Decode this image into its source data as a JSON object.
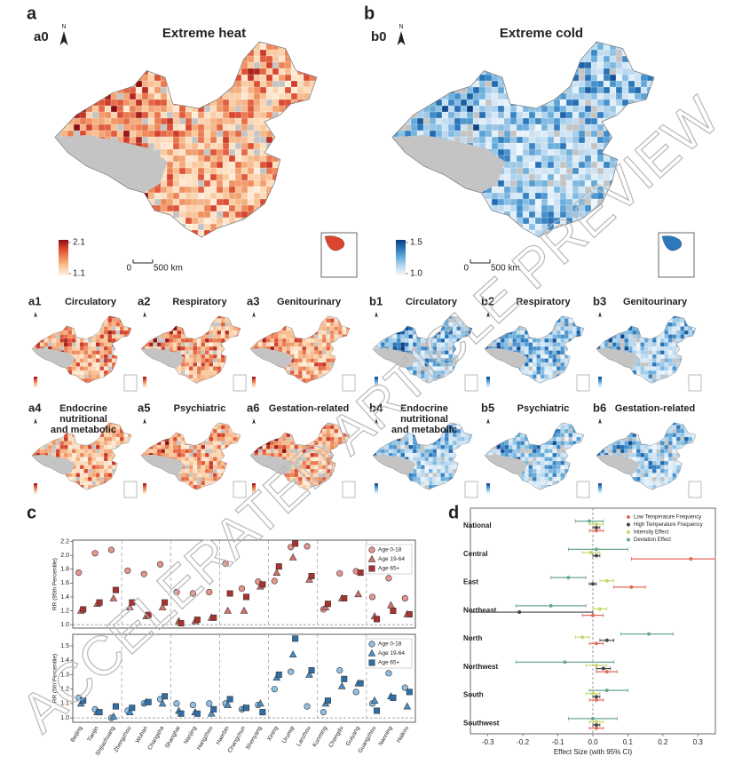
{
  "watermark": "ACCELERATED ARTICLE PREVIEW",
  "maps": {
    "heat": {
      "panel": "a",
      "label": "a0",
      "title": "Extreme heat",
      "north": "N",
      "colorbar": [
        2.1,
        1.1
      ],
      "scale_bar": [
        0,
        {
          "value": 500,
          "label": "500 km"
        }
      ],
      "colors": [
        "#fff1e0",
        "#f9c79a",
        "#ef8a5a",
        "#d9452f",
        "#8a0d12"
      ],
      "small": [
        {
          "label": "a1",
          "title": "Circulatory"
        },
        {
          "label": "a2",
          "title": "Respiratory"
        },
        {
          "label": "a3",
          "title": "Genitourinary"
        },
        {
          "label": "a4",
          "title": [
            "Endocrine",
            "nutritional",
            "and metabolic"
          ]
        },
        {
          "label": "a5",
          "title": "Psychiatric"
        },
        {
          "label": "a6",
          "title": "Gestation-related"
        }
      ]
    },
    "cold": {
      "panel": "b",
      "label": "b0",
      "title": "Extreme cold",
      "north": "N",
      "colorbar": [
        1.5,
        {
          "value": 1,
          "label": "1.0"
        }
      ],
      "scale_bar": [
        0,
        {
          "value": 500,
          "label": "500 km"
        }
      ],
      "colors": [
        "#f2f8fd",
        "#bcd9ef",
        "#6aaedb",
        "#2b78bd",
        "#0b3d7e"
      ],
      "small": [
        {
          "label": "b1",
          "title": "Circulatory"
        },
        {
          "label": "b2",
          "title": "Respiratory"
        },
        {
          "label": "b3",
          "title": "Genitourinary"
        },
        {
          "label": "b4",
          "title": [
            "Endocrine",
            "nutritional",
            "and metabolic"
          ]
        },
        {
          "label": "b5",
          "title": "Psychiatric"
        },
        {
          "label": "b6",
          "title": "Gestation-related"
        }
      ]
    }
  },
  "chart_data": [
    {
      "type": "dot",
      "panel": "c",
      "categories": [
        "Beijing",
        "Tianjin",
        "Shijiazhuang",
        "Zhengzhou",
        "Wuhan",
        "Changsha",
        "Shanghai",
        "Nanjing",
        "Hangzhou",
        "Haerbin",
        "Changchun",
        "Shenyang",
        "Xining",
        "Urumqi",
        "Lanzhou",
        "Kunming",
        "Chengdu",
        "Guiyang",
        "Guangzhou",
        "Nanning",
        "Haikou"
      ],
      "panels": [
        {
          "ylabel": "RR (95th Percentile)",
          "ylim": [
            0.95,
            2.22
          ],
          "yticks": [
            {
              "value": 1,
              "label": "1.0"
            },
            1.2,
            1.4,
            1.6,
            1.8,
            {
              "value": 2,
              "label": "2.0"
            },
            2.2
          ],
          "ref_line": 1,
          "legend": "top-right",
          "series": [
            {
              "name": "Age 0-18",
              "marker": "circle",
              "color": "#e8958e",
              "values": [
                1.75,
                2.03,
                2.08,
                1.78,
                1.73,
                1.87,
                1.47,
                1.45,
                1.47,
                1.88,
                1.52,
                1.62,
                1.63,
                2.12,
                2.13,
                1.22,
                1.74,
                1.77,
                1.4,
                1.67,
                1.38
              ]
            },
            {
              "name": "Age 19-64",
              "marker": "triangle",
              "color": "#d4726a",
              "values": [
                1.2,
                1.3,
                1.38,
                1.25,
                1.12,
                1.25,
                1.05,
                1.05,
                1.1,
                1.2,
                1.2,
                1.55,
                1.75,
                1.97,
                1.65,
                1.25,
                1.38,
                1.44,
                1.12,
                1.28,
                1.15
              ]
            },
            {
              "name": "Age 65+",
              "marker": "square",
              "color": "#a8322d",
              "values": [
                1.22,
                1.32,
                1.5,
                1.32,
                1.14,
                1.32,
                1.02,
                1.07,
                1.1,
                1.45,
                1.4,
                1.58,
                1.84,
                2.17,
                1.7,
                1.3,
                1.38,
                1.75,
                1.08,
                1.2,
                1.15
              ]
            }
          ]
        },
        {
          "ylabel": "RR (5th Percentile)",
          "ylim": [
            0.97,
            1.58
          ],
          "yticks": [
            {
              "value": 1,
              "label": "1.0"
            },
            1.1,
            1.2,
            1.3,
            1.4,
            1.5
          ],
          "ref_line": 1,
          "legend": "top-right",
          "series": [
            {
              "name": "Age 0-18",
              "marker": "circle",
              "color": "#8fc0e3",
              "values": [
                1.14,
                1.06,
                1.0,
                1.05,
                1.1,
                1.13,
                1.1,
                1.09,
                1.1,
                1.1,
                1.06,
                1.09,
                1.2,
                1.32,
                1.08,
                1.04,
                1.33,
                1.18,
                1.1,
                1.31,
                1.21
              ]
            },
            {
              "name": "Age 19-64",
              "marker": "triangle",
              "color": "#4a90c8",
              "values": [
                1.1,
                1.04,
                1.01,
                1.04,
                1.11,
                1.1,
                1.05,
                1.04,
                1.03,
                1.09,
                1.07,
                1.1,
                1.28,
                1.44,
                1.3,
                1.1,
                1.22,
                1.24,
                1.12,
                1.15,
                1.08
              ]
            },
            {
              "name": "Age 65+",
              "marker": "square",
              "color": "#2f6fa8",
              "values": [
                1.12,
                1.04,
                1.08,
                1.07,
                1.11,
                1.15,
                1.03,
                1.03,
                1.06,
                1.13,
                1.07,
                1.04,
                1.3,
                1.55,
                1.33,
                1.12,
                1.27,
                1.24,
                1.05,
                1.14,
                1.18
              ]
            }
          ]
        }
      ]
    },
    {
      "type": "forest",
      "panel": "d",
      "categories": [
        "National",
        "Central",
        "East",
        "Northeast",
        "North",
        "Northwest",
        "South",
        "Southwest"
      ],
      "xlabel": "Effect Size (with 95% CI)",
      "xlim": [
        -0.35,
        0.35
      ],
      "xticks": [
        -0.3,
        -0.2,
        -0.1,
        {
          "value": 0,
          "label": "0.0"
        },
        0.1,
        0.2,
        0.3
      ],
      "ref_line": 0,
      "legend": "top-right",
      "series": [
        {
          "name": "Low Temperature Frequency",
          "color": "#e26a5a",
          "values": [
            0.01,
            0.28,
            0.11,
            0.0,
            0.01,
            0.04,
            0.01,
            0.01
          ],
          "lower": [
            -0.01,
            0.11,
            0.06,
            -0.03,
            -0.01,
            0.01,
            -0.01,
            -0.01
          ],
          "upper": [
            0.03,
            0.35,
            0.15,
            0.03,
            0.03,
            0.07,
            0.03,
            0.03
          ]
        },
        {
          "name": "High Temperature Frequency",
          "color": "#444444",
          "values": [
            0.01,
            0.01,
            0.0,
            -0.21,
            0.04,
            0.03,
            0.01,
            0.01
          ],
          "lower": [
            0.0,
            0.0,
            -0.01,
            -0.35,
            0.02,
            0.01,
            0.0,
            0.0
          ],
          "upper": [
            0.02,
            0.02,
            0.01,
            0.0,
            0.06,
            0.05,
            0.02,
            0.02
          ]
        },
        {
          "name": "Intensity Effect",
          "color": "#c5d66b",
          "values": [
            0.01,
            -0.005,
            0.04,
            0.02,
            -0.03,
            0.01,
            0.0,
            0.01
          ],
          "lower": [
            -0.01,
            -0.03,
            0.02,
            0.0,
            -0.05,
            -0.02,
            -0.02,
            -0.01
          ],
          "upper": [
            0.03,
            0.02,
            0.06,
            0.04,
            -0.01,
            0.04,
            0.02,
            0.03
          ]
        },
        {
          "name": "Deviation Effect",
          "color": "#6aa890",
          "values": [
            -0.01,
            0.01,
            -0.07,
            -0.12,
            0.16,
            -0.08,
            0.04,
            0.0
          ],
          "lower": [
            -0.05,
            -0.07,
            -0.12,
            -0.22,
            0.08,
            -0.22,
            -0.01,
            -0.07
          ],
          "upper": [
            0.03,
            0.1,
            -0.02,
            -0.02,
            0.23,
            0.06,
            0.1,
            0.07
          ]
        }
      ]
    }
  ]
}
